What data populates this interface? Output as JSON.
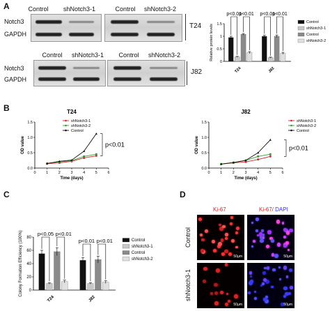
{
  "panels": {
    "a": "A",
    "b": "B",
    "c": "C",
    "d": "D"
  },
  "blot_top": {
    "cols_left": [
      "Control",
      "shNotch3-1"
    ],
    "cols_right": [
      "Control",
      "shNotch3-2"
    ],
    "rows": [
      "Notch3",
      "GAPDH"
    ],
    "cell_line": "T24"
  },
  "blot_bottom": {
    "cols_left": [
      "Control",
      "shNotch3-1"
    ],
    "cols_right": [
      "Control",
      "shNotch3-2"
    ],
    "rows": [
      "Notch3",
      "GAPDH"
    ],
    "cell_line": "J82"
  },
  "colors": {
    "black": "#111111",
    "light": "#c8c8c8",
    "gray": "#8a8a8a",
    "lighter": "#e0e0e0",
    "red": "#d62728",
    "green": "#2ca02c",
    "ctrl": "#111111",
    "ki67": "#ff2222",
    "dapi": "#4040ff"
  },
  "micro": {
    "ki67_label": "Ki-67",
    "merge_label_a": "Ki-67/",
    "merge_label_b": " DAPI",
    "row_control": "Control",
    "row_sh": "shNotch3-1",
    "scale": "50µm"
  },
  "chart_data": [
    {
      "type": "bar",
      "id": "protein",
      "ylabel": "Relative protein levels",
      "categories": [
        "T24",
        "J82"
      ],
      "ylim": [
        0,
        1.5
      ],
      "yticks": [
        0,
        0.5,
        1.0,
        1.5
      ],
      "series": [
        {
          "name": "Control",
          "values": [
            0.95,
            1.0
          ],
          "err": [
            0.05,
            0.04
          ]
        },
        {
          "name": "shNotch3-1",
          "values": [
            0.18,
            0.15
          ],
          "err": [
            0.02,
            0.02
          ]
        },
        {
          "name": "Control",
          "values": [
            1.08,
            1.0
          ],
          "err": [
            0.03,
            0.05
          ]
        },
        {
          "name": "shNotch3-2",
          "values": [
            0.35,
            0.32
          ],
          "err": [
            0.04,
            0.04
          ]
        }
      ],
      "legend_placement": "right",
      "annotations": [
        "p<0.01",
        "p<0.01",
        "p<0.01",
        "p<0.01"
      ]
    },
    {
      "type": "line",
      "id": "growth_t24",
      "title": "T24",
      "xlabel": "Time (days)",
      "ylabel": "OD value",
      "x": [
        1,
        2,
        3,
        4,
        5
      ],
      "xlim": [
        0,
        6
      ],
      "ylim": [
        0,
        1.5
      ],
      "yticks": [
        0.0,
        0.5,
        1.0,
        1.5
      ],
      "xticks": [
        0,
        1,
        2,
        3,
        4,
        5,
        6
      ],
      "series": [
        {
          "name": "shNotch3-1",
          "values": [
            0.14,
            0.17,
            0.22,
            0.33,
            0.4
          ]
        },
        {
          "name": "shNotch3-2",
          "values": [
            0.15,
            0.2,
            0.24,
            0.38,
            0.45
          ]
        },
        {
          "name": "Control",
          "values": [
            0.15,
            0.22,
            0.26,
            0.55,
            1.12
          ]
        }
      ],
      "legend_placement": "top-right",
      "annotation": "p<0.01"
    },
    {
      "type": "line",
      "id": "growth_j82",
      "title": "J82",
      "xlabel": "Time (days)",
      "ylabel": "OD value",
      "x": [
        1,
        2,
        3,
        4,
        5
      ],
      "xlim": [
        0,
        6
      ],
      "ylim": [
        0,
        1.5
      ],
      "yticks": [
        0.0,
        0.5,
        1.0,
        1.5
      ],
      "xticks": [
        0,
        1,
        2,
        3,
        4,
        5,
        6
      ],
      "series": [
        {
          "name": "shNotch3-1",
          "values": [
            0.13,
            0.17,
            0.2,
            0.28,
            0.38
          ]
        },
        {
          "name": "shNotch3-2",
          "values": [
            0.13,
            0.18,
            0.25,
            0.38,
            0.45
          ]
        },
        {
          "name": "Control",
          "values": [
            0.13,
            0.18,
            0.25,
            0.5,
            0.92
          ]
        }
      ],
      "legend_placement": "top-right",
      "annotation": "p<0.01"
    },
    {
      "type": "bar",
      "id": "colony",
      "ylabel": "Colony Formation Efficiency (100%)",
      "categories": [
        "T24",
        "J82"
      ],
      "ylim": [
        0,
        80
      ],
      "yticks": [
        0,
        20,
        40,
        60,
        80
      ],
      "series": [
        {
          "name": "Control",
          "values": [
            55,
            45
          ],
          "err": [
            5,
            4
          ]
        },
        {
          "name": "shNotch3-1",
          "values": [
            10,
            10
          ],
          "err": [
            1,
            1
          ]
        },
        {
          "name": "Control",
          "values": [
            58,
            46
          ],
          "err": [
            6,
            5
          ]
        },
        {
          "name": "shNotch3-2",
          "values": [
            13,
            12
          ],
          "err": [
            2,
            2
          ]
        }
      ],
      "legend_placement": "right",
      "annotations": [
        "p<0.05",
        "p<0.01",
        "p<0.01",
        "p<0.01"
      ]
    }
  ]
}
